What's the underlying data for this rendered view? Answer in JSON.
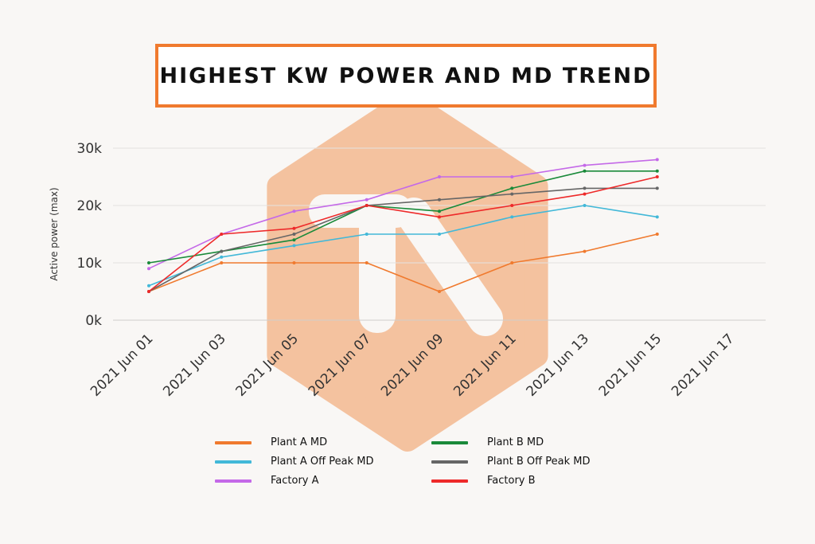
{
  "title": "HIGHEST KW POWER AND MD TREND",
  "colors": {
    "title_border": "#f07a2e",
    "watermark": "#f4c29f",
    "grid": "#e4e2e0"
  },
  "chart_data": {
    "type": "line",
    "ylabel": "Active power (max)",
    "xlabel": "",
    "x_ticks": [
      "2021 Jun 01",
      "2021 Jun 03",
      "2021 Jun 05",
      "2021 Jun 07",
      "2021 Jun 09",
      "2021 Jun 11",
      "2021 Jun 13",
      "2021 Jun 15",
      "2021 Jun 17"
    ],
    "y_ticks": [
      "0k",
      "10k",
      "20k",
      "30k"
    ],
    "ylim": [
      0,
      30000
    ],
    "xlim": [
      "2021 Jun 01",
      "2021 Jun 17"
    ],
    "grid": true,
    "legend_position": "bottom",
    "x": [
      "2021 Jun 01",
      "2021 Jun 03",
      "2021 Jun 05",
      "2021 Jun 07",
      "2021 Jun 09",
      "2021 Jun 11",
      "2021 Jun 13",
      "2021 Jun 15"
    ],
    "series": [
      {
        "name": "Plant A MD",
        "color": "#f07a2e",
        "values": [
          5000,
          10000,
          10000,
          10000,
          5000,
          10000,
          12000,
          15000
        ]
      },
      {
        "name": "Plant A Off Peak MD",
        "color": "#42b8d8",
        "values": [
          6000,
          11000,
          13000,
          15000,
          15000,
          18000,
          20000,
          18000
        ]
      },
      {
        "name": "Factory A",
        "color": "#c469e8",
        "values": [
          9000,
          15000,
          19000,
          21000,
          25000,
          25000,
          27000,
          28000
        ]
      },
      {
        "name": "Plant B MD",
        "color": "#1a8a3a",
        "values": [
          10000,
          12000,
          14000,
          20000,
          19000,
          23000,
          26000,
          26000
        ]
      },
      {
        "name": "Plant B Off Peak MD",
        "color": "#666666",
        "values": [
          5000,
          12000,
          15000,
          20000,
          21000,
          22000,
          23000,
          23000
        ]
      },
      {
        "name": "Factory B",
        "color": "#ee2a2a",
        "values": [
          5000,
          15000,
          16000,
          20000,
          18000,
          20000,
          22000,
          25000
        ]
      }
    ]
  }
}
